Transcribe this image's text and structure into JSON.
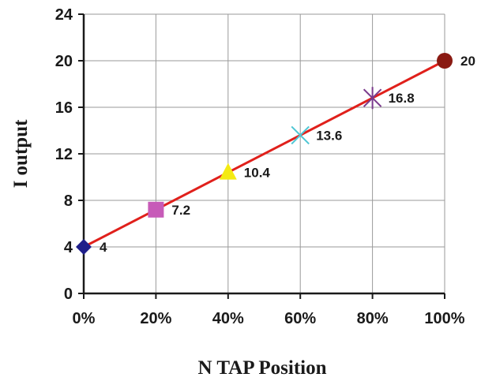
{
  "chart_data": {
    "type": "line",
    "title": "",
    "xlabel": "N TAP Position",
    "ylabel": "I output",
    "x_ticks": [
      "0%",
      "20%",
      "40%",
      "60%",
      "80%",
      "100%"
    ],
    "y_ticks": [
      "0",
      "4",
      "8",
      "12",
      "16",
      "20",
      "24"
    ],
    "xlim": [
      0,
      100
    ],
    "ylim": [
      0,
      24
    ],
    "grid": true,
    "line_color": "#e0201b",
    "points": [
      {
        "x": 0,
        "y": 4,
        "label": "4",
        "marker": "diamond",
        "color": "#1f1f8a"
      },
      {
        "x": 20,
        "y": 7.2,
        "label": "7.2",
        "marker": "square",
        "color": "#c75bb8"
      },
      {
        "x": 40,
        "y": 10.4,
        "label": "10.4",
        "marker": "triangle",
        "color": "#f4ea12"
      },
      {
        "x": 60,
        "y": 13.6,
        "label": "13.6",
        "marker": "x",
        "color": "#4fc6d4"
      },
      {
        "x": 80,
        "y": 16.8,
        "label": "16.8",
        "marker": "star",
        "color": "#7a3a8c"
      },
      {
        "x": 100,
        "y": 20,
        "label": "20",
        "marker": "circle",
        "color": "#8a1a12"
      }
    ]
  }
}
